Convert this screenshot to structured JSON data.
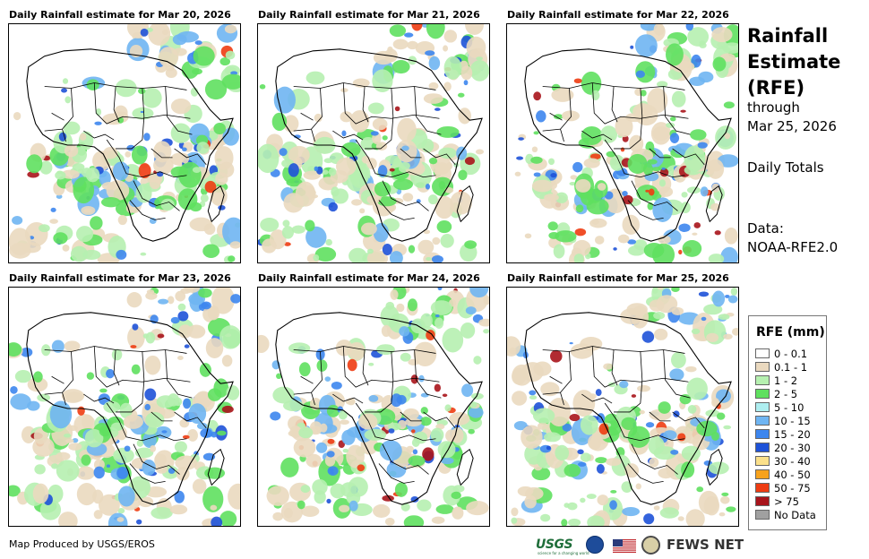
{
  "panels": [
    {
      "title": "Daily Rainfall estimate for Mar 20, 2026",
      "seed": 11
    },
    {
      "title": "Daily Rainfall estimate for Mar 21, 2026",
      "seed": 23
    },
    {
      "title": "Daily Rainfall estimate for Mar 22, 2026",
      "seed": 37
    },
    {
      "title": "Daily Rainfall estimate for Mar 23, 2026",
      "seed": 41
    },
    {
      "title": "Daily Rainfall estimate for Mar 24, 2026",
      "seed": 53
    },
    {
      "title": "Daily Rainfall estimate for Mar 25, 2026",
      "seed": 67
    }
  ],
  "sidebar": {
    "title_line1": "Rainfall",
    "title_line2": "Estimate",
    "title_line3": "(RFE)",
    "through_label": "through",
    "through_date": "Mar 25, 2026",
    "totals_label": "Daily Totals",
    "data_label": "Data:",
    "data_source": "NOAA-RFE2.0"
  },
  "legend": {
    "title": "RFE (mm)",
    "items": [
      {
        "label": "0 - 0.1",
        "color": "#ffffff"
      },
      {
        "label": "0.1 - 1",
        "color": "#ead9bf"
      },
      {
        "label": "1 - 2",
        "color": "#b6f0b0"
      },
      {
        "label": "2 - 5",
        "color": "#5fe05f"
      },
      {
        "label": "5 - 10",
        "color": "#aeeef0"
      },
      {
        "label": "10 - 15",
        "color": "#6fb5f2"
      },
      {
        "label": "15 - 20",
        "color": "#3d86ee"
      },
      {
        "label": "20 - 30",
        "color": "#1e52d8"
      },
      {
        "label": "30 - 40",
        "color": "#fbe08a"
      },
      {
        "label": "40 - 50",
        "color": "#f7a21c"
      },
      {
        "label": "50 - 75",
        "color": "#ee3c12"
      },
      {
        "label": "> 75",
        "color": "#a8141b"
      },
      {
        "label": "No Data",
        "color": "#a0a0a0"
      }
    ]
  },
  "footer": {
    "credit": "Map Produced by USGS/EROS",
    "usgs_logo": "USGS",
    "usgs_tagline": "science for a changing world",
    "fews_logo": "FEWS NET"
  }
}
